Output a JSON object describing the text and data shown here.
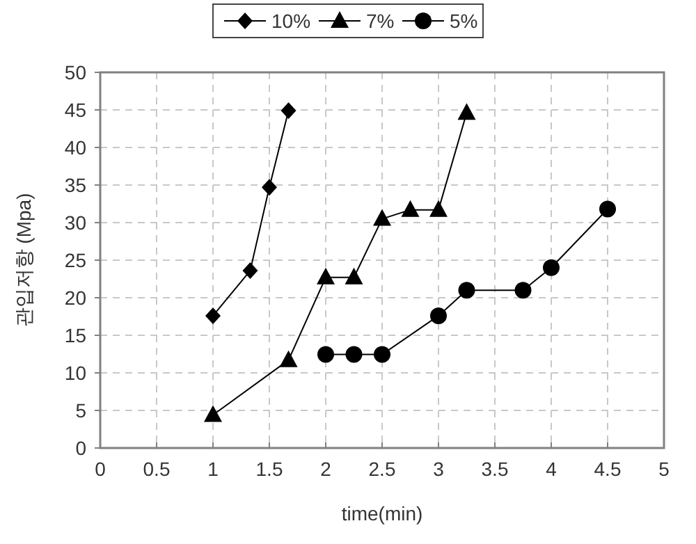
{
  "chart_data": {
    "type": "line",
    "xlabel": "time(min)",
    "ylabel": "관입저항 (Mpa)",
    "xlim": [
      0,
      5
    ],
    "xticks": [
      0,
      0.5,
      1,
      1.5,
      2,
      2.5,
      3,
      3.5,
      4,
      4.5,
      5
    ],
    "ylim": [
      0,
      50
    ],
    "yticks": [
      0,
      5,
      10,
      15,
      20,
      25,
      30,
      35,
      40,
      45,
      50
    ],
    "grid": true,
    "legend": "top",
    "line_style": "solid",
    "series": [
      {
        "name": "10%",
        "color": "#000000",
        "marker": "diamond",
        "x": [
          1,
          1.33,
          1.5,
          1.67
        ],
        "values": [
          17.6,
          23.6,
          34.7,
          44.9
        ]
      },
      {
        "name": "7%",
        "color": "#000000",
        "marker": "triangle",
        "x": [
          1,
          1.67,
          2,
          2.25,
          2.5,
          2.75,
          3,
          3.25
        ],
        "values": [
          4.4,
          11.7,
          22.7,
          22.7,
          30.5,
          31.7,
          31.7,
          44.6
        ]
      },
      {
        "name": "5%",
        "color": "#000000",
        "marker": "circle",
        "x": [
          2,
          2.25,
          2.5,
          3,
          3.25,
          3.75,
          4,
          4.5
        ],
        "values": [
          12.45,
          12.45,
          12.45,
          17.6,
          21.0,
          21.0,
          24.0,
          31.8
        ]
      }
    ]
  }
}
